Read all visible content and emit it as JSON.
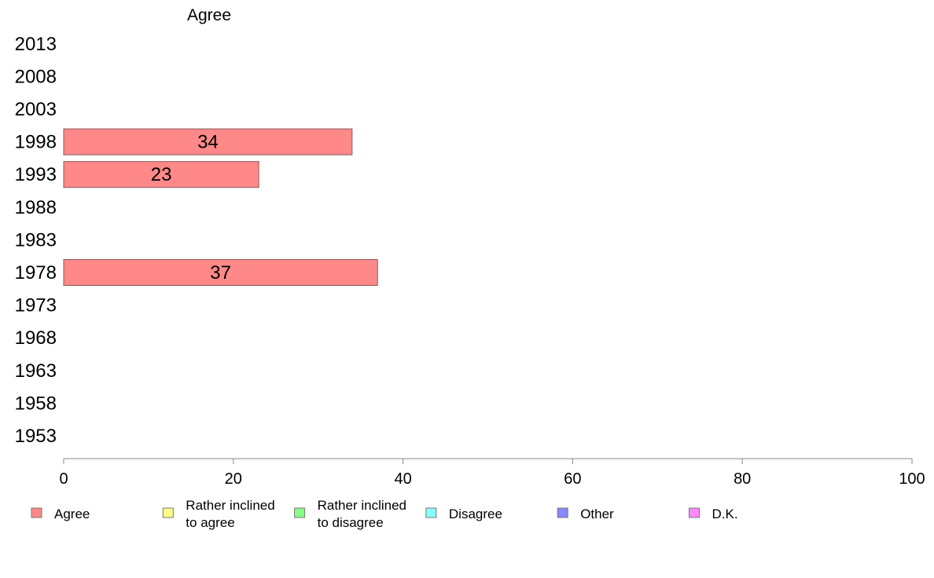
{
  "chart_data": {
    "type": "bar",
    "orientation": "horizontal",
    "series_title": "Agree",
    "categories": [
      "2013",
      "2008",
      "2003",
      "1998",
      "1993",
      "1988",
      "1983",
      "1978",
      "1973",
      "1968",
      "1963",
      "1958",
      "1953"
    ],
    "series": [
      {
        "name": "Agree",
        "color": "#ff8888",
        "values": [
          null,
          null,
          null,
          34,
          23,
          null,
          null,
          37,
          null,
          null,
          null,
          null,
          null
        ]
      }
    ],
    "xlim": [
      0,
      100
    ],
    "xticks": [
      0,
      20,
      40,
      60,
      80,
      100
    ],
    "grid": false,
    "legend_position": "bottom",
    "legend": [
      {
        "label": "Agree",
        "color": "#ff8888"
      },
      {
        "label": "Rather inclined to agree",
        "lines": [
          "Rather inclined",
          "to agree"
        ],
        "color": "#ffff88"
      },
      {
        "label": "Rather inclined to disagree",
        "lines": [
          "Rather inclined",
          "to disagree"
        ],
        "color": "#88ff88"
      },
      {
        "label": "Disagree",
        "color": "#88ffff"
      },
      {
        "label": "Other",
        "color": "#8888ff"
      },
      {
        "label": "D.K.",
        "color": "#ff88ff"
      }
    ]
  }
}
